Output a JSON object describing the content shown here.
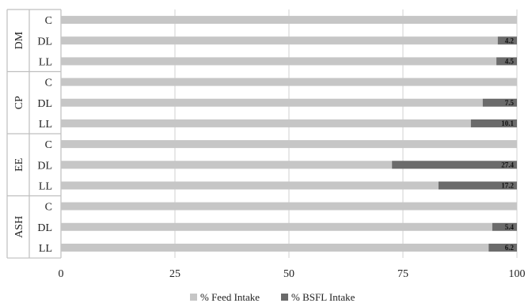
{
  "chart_data": {
    "type": "bar",
    "orientation": "horizontal",
    "stacked": true,
    "xlim": [
      0,
      100
    ],
    "x_ticks": [
      "0",
      "25",
      "50",
      "75",
      "100"
    ],
    "grid": "vertical",
    "legend_position": "bottom",
    "colors": {
      "feed": "#c6c6c6",
      "bsfl": "#6b6b6b",
      "grid": "#d9d9d9",
      "axis": "#bfbfbf"
    },
    "groups": [
      {
        "name": "DM",
        "categories": [
          "C",
          "DL",
          "LL"
        ],
        "feed": [
          100,
          95.8,
          95.5
        ],
        "bsfl": [
          0,
          4.2,
          4.5
        ],
        "bsfl_labels": [
          "",
          "4.2",
          "4.5"
        ]
      },
      {
        "name": "CP",
        "categories": [
          "C",
          "DL",
          "LL"
        ],
        "feed": [
          100,
          92.5,
          89.9
        ],
        "bsfl": [
          0,
          7.5,
          10.1
        ],
        "bsfl_labels": [
          "",
          "7.5",
          "10.1"
        ]
      },
      {
        "name": "EE",
        "categories": [
          "C",
          "DL",
          "LL"
        ],
        "feed": [
          100,
          72.6,
          82.8
        ],
        "bsfl": [
          0,
          27.4,
          17.2
        ],
        "bsfl_labels": [
          "",
          "27.4",
          "17.2"
        ]
      },
      {
        "name": "ASH",
        "categories": [
          "C",
          "DL",
          "LL"
        ],
        "feed": [
          100,
          94.6,
          93.8
        ],
        "bsfl": [
          0,
          5.4,
          6.2
        ],
        "bsfl_labels": [
          "",
          "5.4",
          "6.2"
        ]
      }
    ],
    "series": [
      {
        "name": "% Feed Intake",
        "key": "feed"
      },
      {
        "name": "% BSFL Intake",
        "key": "bsfl"
      }
    ]
  }
}
